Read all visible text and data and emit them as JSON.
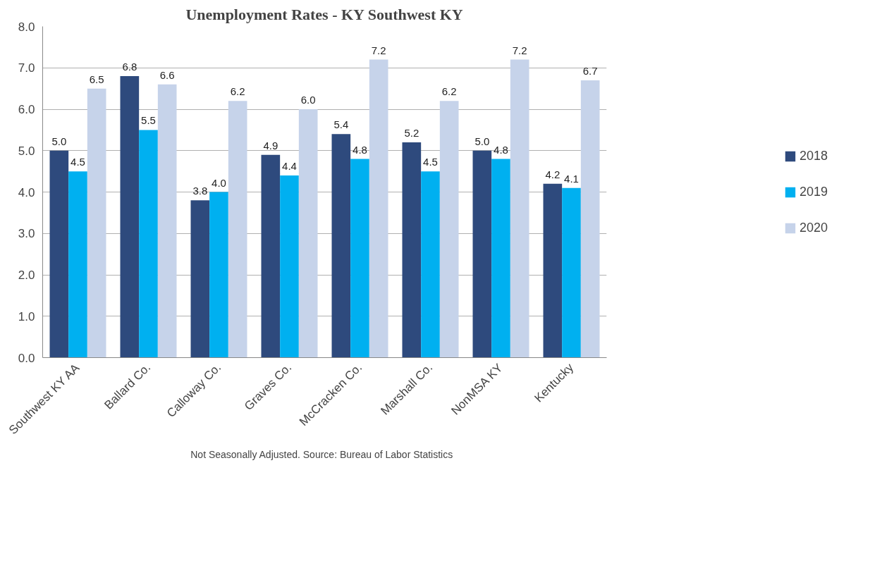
{
  "chart_data": {
    "type": "bar",
    "title": "Unemployment Rates - KY Southwest KY",
    "categories": [
      "Southwest KY AA",
      "Ballard Co.",
      "Calloway Co.",
      "Graves Co.",
      "McCracken Co.",
      "Marshall Co.",
      "NonMSA KY",
      "Kentucky"
    ],
    "series": [
      {
        "name": "2018",
        "color": "#2e4a7d",
        "values": [
          5.0,
          6.8,
          3.8,
          4.9,
          5.4,
          5.2,
          5.0,
          4.2
        ],
        "value_labels": [
          "5.0",
          "6.8",
          "3.8",
          "4.9",
          "5.4",
          "5.2",
          "5.0",
          "4.2"
        ]
      },
      {
        "name": "2019",
        "color": "#00b0f0",
        "values": [
          4.5,
          5.5,
          4.0,
          4.4,
          4.8,
          4.5,
          4.8,
          4.1
        ],
        "value_labels": [
          "4.5",
          "5.5",
          "4.0",
          "4.4",
          "4.8",
          "4.5",
          "4.8",
          "4.1"
        ]
      },
      {
        "name": "2020",
        "color": "#c6d3ea",
        "values": [
          6.5,
          6.6,
          6.2,
          6.0,
          7.2,
          6.2,
          7.2,
          6.7
        ],
        "value_labels": [
          "6.5",
          "6.6",
          "6.2",
          "6.0",
          "7.2",
          "6.2",
          "7.2",
          "6.7"
        ]
      }
    ],
    "ylim": [
      0,
      8
    ],
    "yticks": [
      {
        "value": 0,
        "label": "0.0"
      },
      {
        "value": 1,
        "label": "1.0"
      },
      {
        "value": 2,
        "label": "2.0"
      },
      {
        "value": 3,
        "label": "3.0"
      },
      {
        "value": 4,
        "label": "4.0"
      },
      {
        "value": 5,
        "label": "5.0"
      },
      {
        "value": 6,
        "label": "6.0"
      },
      {
        "value": 7,
        "label": "7.0"
      },
      {
        "value": 8,
        "label": "8.0"
      }
    ],
    "grid": "y",
    "legend": "right",
    "annotations": [
      "Not Seasonally Adjusted.   Source: Bureau of Labor Statistics"
    ]
  }
}
